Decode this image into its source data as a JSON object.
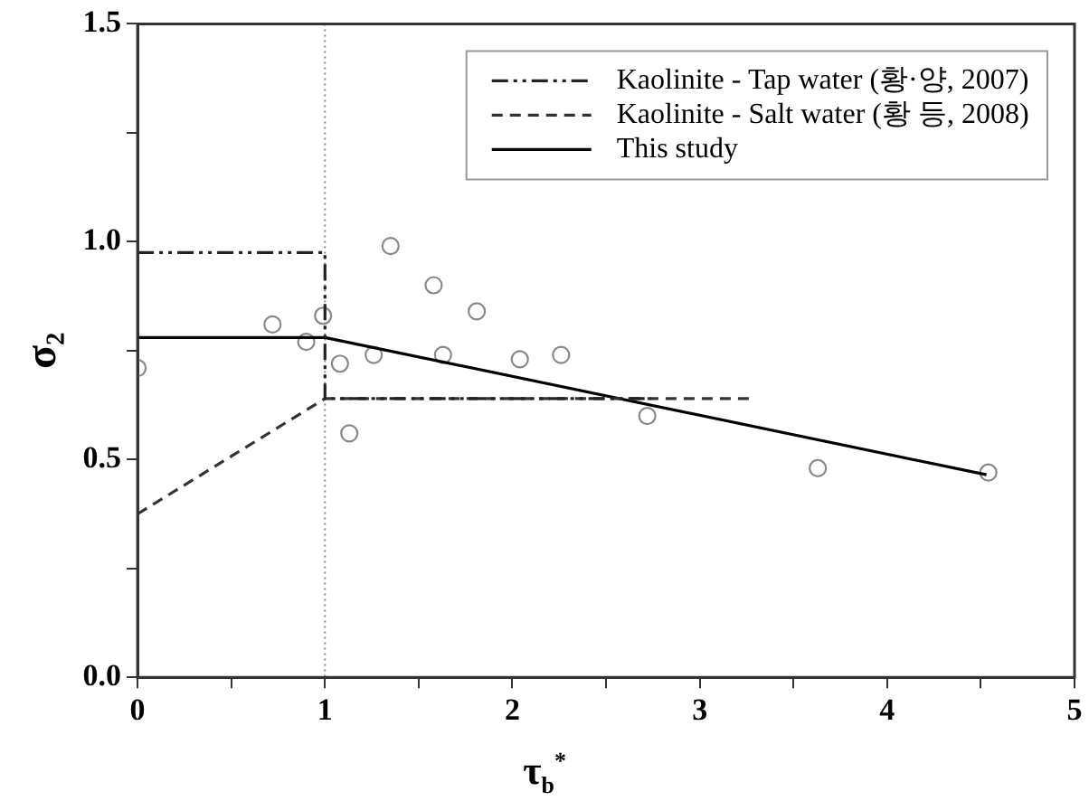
{
  "chart_data": {
    "type": "line",
    "xlabel": "τ$_{b}$$^{*}$",
    "ylabel": "σ₂",
    "xlim": [
      0,
      5
    ],
    "xticks": [
      0,
      {
        "value": 0.5,
        "label": null
      },
      1,
      {
        "value": 1.5,
        "label": null
      },
      2,
      {
        "value": 2.5,
        "label": null
      },
      3,
      {
        "value": 3.5,
        "label": null
      },
      4,
      {
        "value": 4.5,
        "label": null
      },
      5
    ],
    "ylim": [
      0,
      1.5
    ],
    "yticks": [
      {
        "value": 0,
        "label": "0.0"
      },
      {
        "value": 0.25,
        "label": null
      },
      0.5,
      {
        "value": 0.75,
        "label": null
      },
      {
        "value": 1,
        "label": "1.0"
      },
      {
        "value": 1.25,
        "label": null
      },
      1.5
    ],
    "grid": false,
    "legend": "top right",
    "ref_lines": [
      {
        "axis": "x",
        "value": 1,
        "color": "#888888",
        "line_style": "dotted"
      }
    ],
    "series": [
      {
        "name": "Kaolinite - Tap water (황·양, 2007)",
        "type": "line",
        "color": "#222222",
        "line_style": "dotted",
        "marker": "none",
        "x": [
          0,
          1,
          1,
          2.74
        ],
        "values": [
          0.975,
          0.975,
          0.64,
          0.64
        ]
      },
      {
        "name": "Kaolinite - Salt water (황 등, 2008)",
        "type": "line",
        "color": "#333333",
        "line_style": "dashed",
        "marker": "none",
        "x": [
          0,
          1,
          3.28
        ],
        "values": [
          0.375,
          0.64,
          0.64
        ]
      },
      {
        "name": "This study",
        "type": "line",
        "color": "#000000",
        "line_style": "solid",
        "marker": "none",
        "x": [
          0,
          1,
          4.53
        ],
        "values": [
          0.78,
          0.78,
          0.465
        ]
      },
      {
        "type": "scatter",
        "color": "#888888",
        "marker": "circle",
        "x": [
          0.0,
          0.72,
          0.9,
          0.99,
          1.08,
          1.13,
          1.26,
          1.35,
          1.58,
          1.63,
          1.81,
          2.04,
          2.26,
          2.72,
          3.63,
          4.54
        ],
        "values": [
          0.71,
          0.81,
          0.77,
          0.83,
          0.72,
          0.56,
          0.74,
          0.99,
          0.9,
          0.74,
          0.84,
          0.73,
          0.74,
          0.6,
          0.48,
          0.47
        ]
      }
    ]
  }
}
